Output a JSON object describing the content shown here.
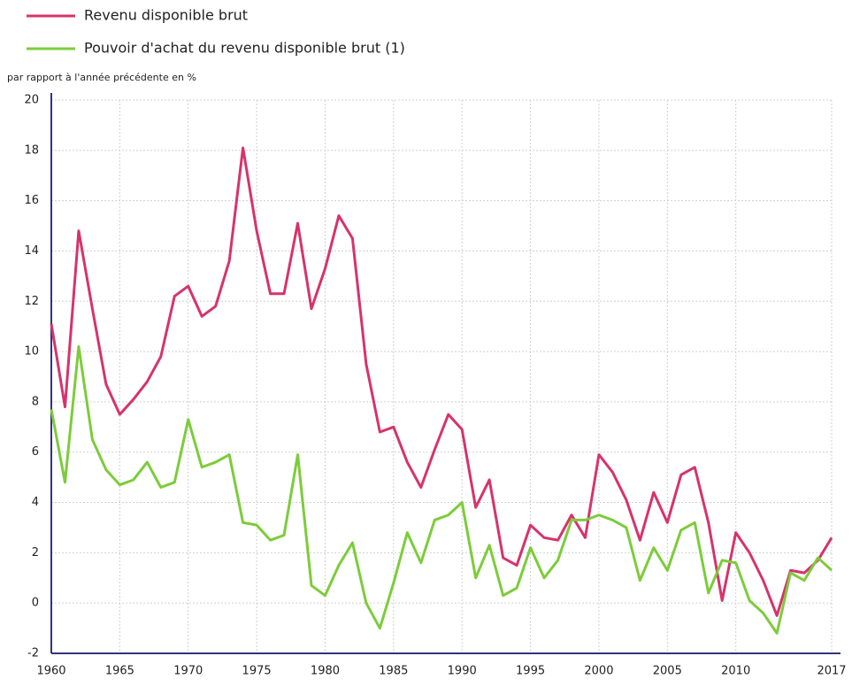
{
  "chart_data": {
    "type": "line",
    "ylabel": "par rapport à l'année précédente en %",
    "x": [
      1960,
      1961,
      1962,
      1963,
      1964,
      1965,
      1966,
      1967,
      1968,
      1969,
      1970,
      1971,
      1972,
      1973,
      1974,
      1975,
      1976,
      1977,
      1978,
      1979,
      1980,
      1981,
      1982,
      1983,
      1984,
      1985,
      1986,
      1987,
      1988,
      1989,
      1990,
      1991,
      1992,
      1993,
      1994,
      1995,
      1996,
      1997,
      1998,
      1999,
      2000,
      2001,
      2002,
      2003,
      2004,
      2005,
      2006,
      2007,
      2008,
      2009,
      2010,
      2011,
      2012,
      2013,
      2014,
      2015,
      2016,
      2017
    ],
    "series": [
      {
        "name": "Revenu disponible brut",
        "color": "#d6336c",
        "values": [
          11.1,
          7.8,
          14.8,
          11.7,
          8.7,
          7.5,
          8.1,
          8.8,
          9.8,
          12.2,
          12.6,
          11.4,
          11.8,
          13.6,
          18.1,
          14.8,
          12.3,
          12.3,
          15.1,
          11.7,
          13.3,
          15.4,
          14.5,
          9.5,
          6.8,
          7.0,
          5.6,
          4.6,
          6.1,
          7.5,
          6.9,
          3.8,
          4.9,
          1.8,
          1.5,
          3.1,
          2.6,
          2.5,
          3.5,
          2.6,
          5.9,
          5.2,
          4.1,
          2.5,
          4.4,
          3.2,
          5.1,
          5.4,
          3.2,
          0.1,
          2.8,
          2.0,
          0.9,
          -0.5,
          1.3,
          1.2,
          1.7,
          2.6
        ]
      },
      {
        "name": "Pouvoir d'achat du revenu disponible brut (1)",
        "color": "#7ccc3a",
        "values": [
          7.7,
          4.8,
          10.2,
          6.5,
          5.3,
          4.7,
          4.9,
          5.6,
          4.6,
          4.8,
          7.3,
          5.4,
          5.6,
          5.9,
          3.2,
          3.1,
          2.5,
          2.7,
          5.9,
          0.7,
          0.3,
          1.5,
          2.4,
          0.0,
          -1.0,
          0.8,
          2.8,
          1.6,
          3.3,
          3.5,
          4.0,
          1.0,
          2.3,
          0.3,
          0.6,
          2.2,
          1.0,
          1.7,
          3.3,
          3.3,
          3.5,
          3.3,
          3.0,
          0.9,
          2.2,
          1.3,
          2.9,
          3.2,
          0.4,
          1.7,
          1.6,
          0.1,
          -0.4,
          -1.2,
          1.2,
          0.9,
          1.8,
          1.3
        ]
      }
    ],
    "xlim": [
      1960,
      2017
    ],
    "xticks": [
      1960,
      1965,
      1970,
      1975,
      1980,
      1985,
      1990,
      1995,
      2000,
      2005,
      2010,
      2017
    ],
    "ylim": [
      -2,
      20
    ],
    "yticks": [
      -2,
      0,
      2,
      4,
      6,
      8,
      10,
      12,
      14,
      16,
      18,
      20
    ],
    "grid": true
  }
}
